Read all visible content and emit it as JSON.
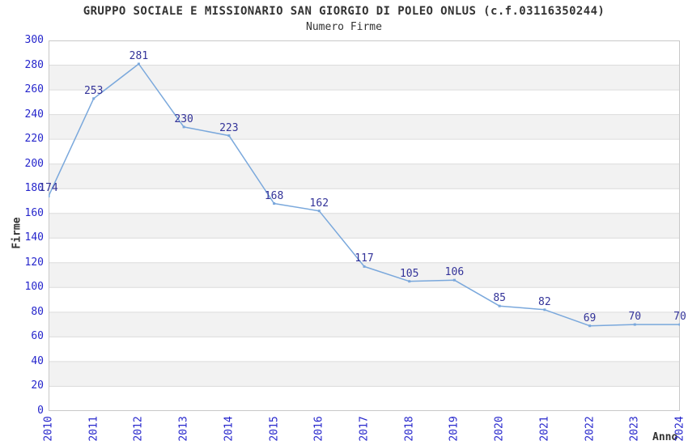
{
  "header": {
    "title": "GRUPPO SOCIALE E MISSIONARIO SAN GIORGIO DI POLEO ONLUS (c.f.03116350244)",
    "subtitle": "Numero Firme"
  },
  "chart_data": {
    "type": "line",
    "title": "GRUPPO SOCIALE E MISSIONARIO SAN GIORGIO DI POLEO ONLUS (c.f.03116350244)",
    "subtitle": "Numero Firme",
    "xlabel": "Anno",
    "ylabel": "Firme",
    "x": [
      "2010",
      "2011",
      "2012",
      "2013",
      "2014",
      "2015",
      "2016",
      "2017",
      "2018",
      "2019",
      "2020",
      "2021",
      "2022",
      "2023",
      "2024"
    ],
    "series": [
      {
        "name": "Numero Firme",
        "values": [
          174,
          253,
          281,
          230,
          223,
          168,
          162,
          117,
          105,
          106,
          85,
          82,
          69,
          70,
          70
        ]
      }
    ],
    "ylim": [
      0,
      300
    ],
    "ytick_step": 20,
    "grid": true,
    "alternating_bands": true,
    "legend_position": "none",
    "colors": {
      "line": "#7aa8dc",
      "marker": "#7aa8dc",
      "data_label": "#333399",
      "tick_label": "#2626cc",
      "axis_title": "#333333",
      "title": "#333333",
      "band_gray": "#f2f2f2",
      "band_white": "#ffffff",
      "gridline": "#dcdcdc",
      "plot_border": "#c8c8c8"
    }
  }
}
